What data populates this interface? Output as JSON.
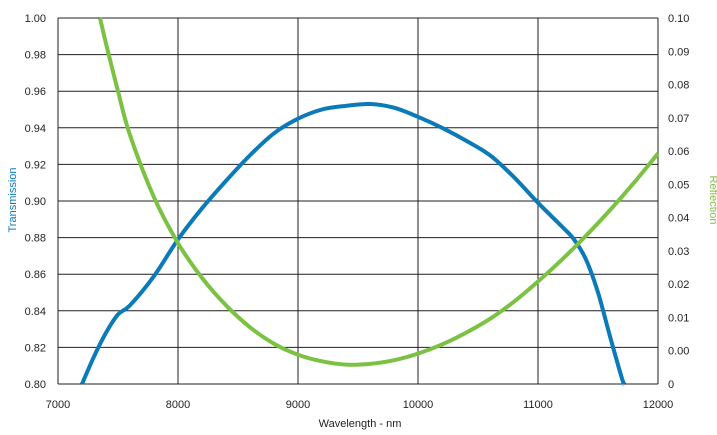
{
  "chart_data": {
    "type": "line",
    "title": "",
    "xlabel": "Wavelength - nm",
    "ylabel_left": "Transmission",
    "ylabel_right": "Reflection",
    "xlim": [
      7000,
      12000
    ],
    "ylim_left": [
      0.8,
      1.0
    ],
    "ylim_right": [
      0,
      0.1
    ],
    "grid": true,
    "legend": "none",
    "x_ticks": [
      "7000",
      "8000",
      "9000",
      "10000",
      "11000",
      "12000"
    ],
    "y_left_ticks": [
      "0.80",
      "0.82",
      "0.84",
      "0.86",
      "0.88",
      "0.90",
      "0.92",
      "0.94",
      "0.96",
      "0.98",
      "1.00"
    ],
    "y_right_ticks": [
      "0",
      "0.00",
      "0.01",
      "0.02",
      "0.03",
      "0.04",
      "0.05",
      "0.06",
      "0.07",
      "0.08",
      "0.09",
      "0.10"
    ],
    "colors": {
      "transmission": "#0a7ab8",
      "reflection": "#7cc242",
      "grid": "#231f20"
    },
    "series": [
      {
        "axis": "left",
        "x": [
          7200,
          7300,
          7400,
          7500,
          7600,
          7800,
          8000,
          8200,
          8400,
          8600,
          8800,
          9000,
          9200,
          9400,
          9600,
          9800,
          10000,
          10200,
          10400,
          10600,
          10800,
          11000,
          11200,
          11300,
          11400,
          11500,
          11600,
          11700,
          11720
        ],
        "y": [
          0.8,
          0.815,
          0.828,
          0.838,
          0.843,
          0.859,
          0.879,
          0.896,
          0.911,
          0.925,
          0.937,
          0.945,
          0.95,
          0.952,
          0.953,
          0.951,
          0.946,
          0.94,
          0.933,
          0.925,
          0.913,
          0.899,
          0.886,
          0.879,
          0.868,
          0.85,
          0.826,
          0.803,
          0.8
        ]
      },
      {
        "axis": "right",
        "x": [
          7350,
          7400,
          7500,
          7600,
          7800,
          8000,
          8200,
          8400,
          8600,
          8800,
          9000,
          9200,
          9400,
          9600,
          9800,
          10000,
          10200,
          10400,
          10600,
          10800,
          11000,
          11200,
          11400,
          11600,
          11800,
          12000
        ],
        "y": [
          0.1,
          0.093,
          0.08,
          0.068,
          0.051,
          0.0385,
          0.029,
          0.0215,
          0.0155,
          0.011,
          0.008,
          0.0062,
          0.0053,
          0.0055,
          0.0065,
          0.0083,
          0.0108,
          0.014,
          0.0178,
          0.0225,
          0.028,
          0.034,
          0.0405,
          0.0475,
          0.055,
          0.063
        ]
      }
    ]
  }
}
